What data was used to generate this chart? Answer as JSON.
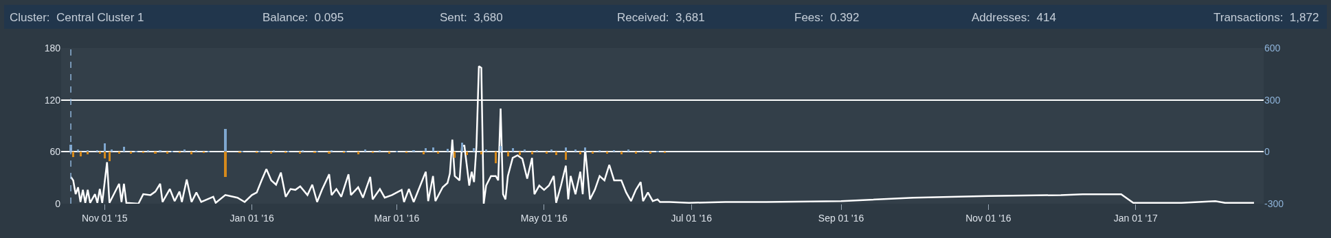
{
  "chart_data": {
    "type": "line",
    "title": "Cluster:  Central Cluster 1",
    "annotations": [
      "Balance:  0.095",
      "Sent:  3,680",
      "Received:  3,681",
      "Fees:  0.392",
      "Addresses:  414",
      "Transactions:  1,872"
    ],
    "xlim": [
      "2015-10-14",
      "2017-02-23"
    ],
    "xticks": [
      {
        "value": "2015-11-01",
        "label": "Nov 01 '15"
      },
      {
        "value": "2016-01-01",
        "label": "Jan 01 '16"
      },
      {
        "value": "2016-03-01",
        "label": "Mar 01 '16"
      },
      {
        "value": "2016-05-01",
        "label": "May 01 '16"
      },
      {
        "value": "2016-07-01",
        "label": "Jul 01 '16"
      },
      {
        "value": "2016-09-01",
        "label": "Sep 01 '16"
      },
      {
        "value": "2016-11-01",
        "label": "Nov 01 '16"
      },
      {
        "value": "2017-01-01",
        "label": "Jan 01 '17"
      }
    ],
    "ylim": [
      0,
      180
    ],
    "yticks": [
      0,
      60,
      120,
      180
    ],
    "y2lim": [
      -300,
      600
    ],
    "y2ticks": [
      -300,
      0,
      300,
      600
    ],
    "grid": "y",
    "ref_lines": [
      {
        "axis": "x",
        "value": "2015-10-18",
        "label": null,
        "color": "#8fb4da",
        "line_style": "dashed"
      }
    ],
    "series": [
      {
        "type": "bar",
        "axis": "y2",
        "color": "#7fa7cf",
        "x": [
          "2015-10-18",
          "2015-10-21",
          "2015-10-25",
          "2015-10-29",
          "2015-11-01",
          "2015-11-04",
          "2015-11-09",
          "2015-11-14",
          "2015-11-19",
          "2015-11-24",
          "2015-11-29",
          "2015-12-04",
          "2015-12-09",
          "2015-12-14",
          "2015-12-21",
          "2015-12-28",
          "2016-01-04",
          "2016-01-10",
          "2016-01-16",
          "2016-01-22",
          "2016-01-28",
          "2016-02-03",
          "2016-02-09",
          "2016-02-17",
          "2016-02-23",
          "2016-03-01",
          "2016-03-08",
          "2016-03-13",
          "2016-03-16",
          "2016-03-22",
          "2016-03-28",
          "2016-04-02",
          "2016-04-07",
          "2016-04-13",
          "2016-04-18",
          "2016-04-23",
          "2016-04-28",
          "2016-05-04",
          "2016-05-10",
          "2016-05-14",
          "2016-05-18",
          "2016-05-24",
          "2016-05-30",
          "2016-06-05",
          "2016-06-11",
          "2016-06-17"
        ],
        "values": [
          40,
          12,
          8,
          10,
          48,
          12,
          29,
          6,
          8,
          10,
          6,
          14,
          8,
          6,
          132,
          5,
          6,
          8,
          5,
          10,
          6,
          8,
          6,
          14,
          8,
          6,
          10,
          20,
          25,
          18,
          54,
          20,
          15,
          33,
          22,
          12,
          10,
          15,
          27,
          14,
          27,
          10,
          8,
          12,
          10,
          6
        ]
      },
      {
        "type": "bar",
        "axis": "y2",
        "color": "#d68a1c",
        "x": [
          "2015-10-19",
          "2015-10-22",
          "2015-10-25",
          "2015-10-30",
          "2015-11-01",
          "2015-11-03",
          "2015-11-07",
          "2015-11-12",
          "2015-11-17",
          "2015-11-22",
          "2015-11-27",
          "2015-12-02",
          "2015-12-07",
          "2015-12-12",
          "2015-12-21",
          "2015-12-27",
          "2016-01-03",
          "2016-01-09",
          "2016-01-15",
          "2016-01-21",
          "2016-01-27",
          "2016-02-02",
          "2016-02-08",
          "2016-02-14",
          "2016-02-20",
          "2016-02-27",
          "2016-03-05",
          "2016-03-12",
          "2016-03-18",
          "2016-03-25",
          "2016-03-30",
          "2016-04-05",
          "2016-04-11",
          "2016-04-16",
          "2016-04-21",
          "2016-04-26",
          "2016-05-02",
          "2016-05-06",
          "2016-05-10",
          "2016-05-16",
          "2016-05-21",
          "2016-05-27",
          "2016-06-02",
          "2016-06-08",
          "2016-06-14",
          "2016-06-20"
        ],
        "values": [
          -29,
          -25,
          -15,
          -10,
          -37,
          -53,
          -12,
          -10,
          -8,
          -12,
          -10,
          -8,
          -15,
          -6,
          -146,
          -6,
          -8,
          -10,
          -6,
          -12,
          -8,
          -10,
          -6,
          -15,
          -8,
          -10,
          -6,
          -14,
          -12,
          -33,
          -20,
          -15,
          -67,
          -25,
          -20,
          -15,
          -12,
          -18,
          -47,
          -15,
          -12,
          -10,
          -14,
          -10,
          -12,
          -8
        ]
      },
      {
        "axis": "y",
        "color": "#ffffff",
        "x": [
          "2015-10-18",
          "2015-10-19",
          "2015-10-20",
          "2015-10-21",
          "2015-10-22",
          "2015-10-23",
          "2015-10-24",
          "2015-10-25",
          "2015-10-26",
          "2015-10-28",
          "2015-10-29",
          "2015-10-30",
          "2015-10-31",
          "2015-11-02",
          "2015-11-03",
          "2015-11-07",
          "2015-11-08",
          "2015-11-09",
          "2015-11-10",
          "2015-11-15",
          "2015-11-17",
          "2015-11-20",
          "2015-11-22",
          "2015-11-24",
          "2015-11-25",
          "2015-11-28",
          "2015-11-30",
          "2015-12-02",
          "2015-12-03",
          "2015-12-05",
          "2015-12-07",
          "2015-12-09",
          "2015-12-11",
          "2015-12-16",
          "2015-12-17",
          "2015-12-21",
          "2015-12-26",
          "2015-12-29",
          "2016-01-01",
          "2016-01-03",
          "2016-01-05",
          "2016-01-07",
          "2016-01-09",
          "2016-01-11",
          "2016-01-13",
          "2016-01-15",
          "2016-01-17",
          "2016-01-19",
          "2016-01-21",
          "2016-01-24",
          "2016-01-26",
          "2016-01-28",
          "2016-01-30",
          "2016-02-02",
          "2016-02-03",
          "2016-02-05",
          "2016-02-07",
          "2016-02-10",
          "2016-02-11",
          "2016-02-14",
          "2016-02-16",
          "2016-02-19",
          "2016-02-20",
          "2016-02-23",
          "2016-02-25",
          "2016-02-28",
          "2016-03-03",
          "2016-03-04",
          "2016-03-06",
          "2016-03-08",
          "2016-03-13",
          "2016-03-14",
          "2016-03-16",
          "2016-03-17",
          "2016-03-20",
          "2016-03-22",
          "2016-03-23",
          "2016-03-24",
          "2016-03-25",
          "2016-03-27",
          "2016-03-28",
          "2016-03-29",
          "2016-03-31",
          "2016-04-01",
          "2016-04-02",
          "2016-04-03",
          "2016-04-04",
          "2016-04-05",
          "2016-04-06",
          "2016-04-07",
          "2016-04-09",
          "2016-04-11",
          "2016-04-12",
          "2016-04-13",
          "2016-04-14",
          "2016-04-15",
          "2016-04-16",
          "2016-04-18",
          "2016-04-20",
          "2016-04-22",
          "2016-04-24",
          "2016-04-26",
          "2016-04-27",
          "2016-04-29",
          "2016-05-01",
          "2016-05-03",
          "2016-05-05",
          "2016-05-06",
          "2016-05-08",
          "2016-05-10",
          "2016-05-11",
          "2016-05-12",
          "2016-05-14",
          "2016-05-16",
          "2016-05-17",
          "2016-05-18",
          "2016-05-20",
          "2016-05-22",
          "2016-05-24",
          "2016-05-26",
          "2016-05-28",
          "2016-05-30",
          "2016-06-02",
          "2016-06-04",
          "2016-06-06",
          "2016-06-08",
          "2016-06-10",
          "2016-06-11",
          "2016-06-13",
          "2016-06-15",
          "2016-06-17",
          "2016-06-18",
          "2016-06-22",
          "2016-06-30",
          "2016-07-15",
          "2016-08-01",
          "2016-09-01",
          "2016-10-01",
          "2016-11-01",
          "2016-12-01",
          "2016-12-10",
          "2016-12-26",
          "2016-12-29",
          "2016-12-31",
          "2017-01-20",
          "2017-02-03",
          "2017-02-07",
          "2017-02-19"
        ],
        "values": [
          31,
          27,
          11,
          19,
          2,
          16,
          1,
          16,
          1,
          11,
          1,
          17,
          1,
          48,
          1,
          23,
          2,
          23,
          1,
          0,
          11,
          10,
          14,
          23,
          2,
          17,
          3,
          14,
          2,
          28,
          2,
          13,
          2,
          8,
          1,
          10,
          7,
          2,
          10,
          13,
          27,
          40,
          27,
          22,
          36,
          8,
          17,
          16,
          20,
          10,
          22,
          2,
          16,
          34,
          10,
          17,
          8,
          34,
          10,
          19,
          7,
          31,
          5,
          17,
          7,
          10,
          16,
          2,
          17,
          2,
          37,
          3,
          32,
          3,
          19,
          24,
          35,
          74,
          32,
          27,
          67,
          67,
          21,
          37,
          25,
          67,
          159,
          157,
          0,
          21,
          32,
          32,
          27,
          110,
          11,
          5,
          32,
          53,
          56,
          52,
          29,
          53,
          11,
          21,
          16,
          21,
          32,
          1,
          21,
          44,
          5,
          32,
          11,
          37,
          11,
          64,
          5,
          16,
          32,
          27,
          45,
          27,
          27,
          13,
          3,
          16,
          25,
          3,
          13,
          3,
          5,
          2,
          2,
          1,
          2,
          2,
          3,
          7,
          9,
          10,
          11,
          11,
          5,
          1,
          1,
          3,
          1,
          1
        ]
      }
    ]
  }
}
